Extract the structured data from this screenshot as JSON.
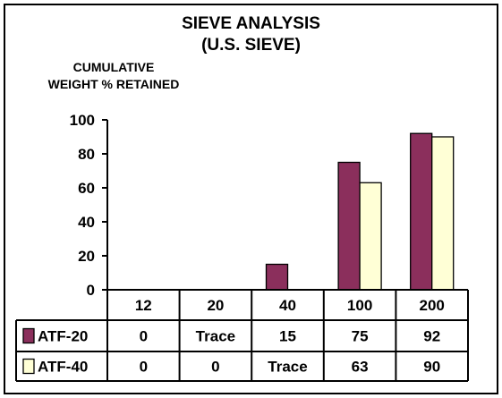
{
  "chart_data": {
    "type": "bar",
    "title": "SIEVE ANALYSIS",
    "subtitle": "(U.S. SIEVE)",
    "ylabel_line1": "CUMULATIVE",
    "ylabel_line2": "WEIGHT % RETAINED",
    "xlabel": "",
    "categories": [
      "12",
      "20",
      "40",
      "100",
      "200"
    ],
    "ylim": [
      0,
      100
    ],
    "yticks": [
      "0",
      "20",
      "40",
      "60",
      "80",
      "100"
    ],
    "grid": false,
    "legend_placement": "table-rows-left",
    "series": [
      {
        "name": "ATF-20",
        "color": "#8b2f5c",
        "values": [
          0,
          0,
          15,
          75,
          92
        ],
        "labels": [
          "0",
          "Trace",
          "15",
          "75",
          "92"
        ]
      },
      {
        "name": "ATF-40",
        "color": "#ffffd6",
        "values": [
          0,
          0,
          0,
          63,
          90
        ],
        "labels": [
          "0",
          "0",
          "Trace",
          "63",
          "90"
        ]
      }
    ]
  }
}
